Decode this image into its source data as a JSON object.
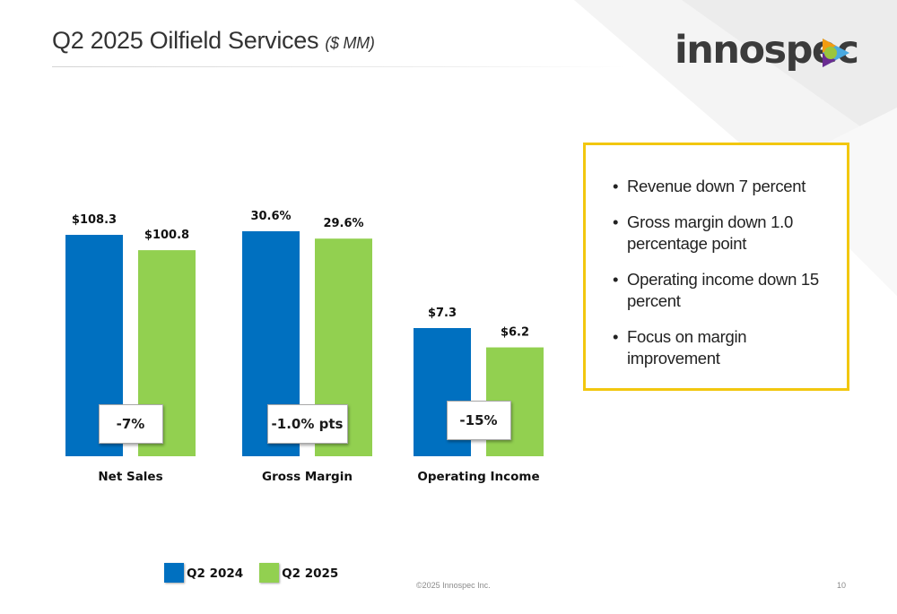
{
  "header": {
    "title": "Q2 2025 Oilfield Services",
    "title_unit": "($ MM)",
    "logo_text": "innospec"
  },
  "chart_data": {
    "type": "bar",
    "groups": [
      {
        "category": "Net Sales",
        "values": [
          108.3,
          100.8
        ],
        "labels": [
          "$108.3",
          "$100.8"
        ],
        "change_label": "-7%"
      },
      {
        "category": "Gross Margin",
        "values": [
          30.6,
          29.6
        ],
        "labels": [
          "30.6%",
          "29.6%"
        ],
        "change_label": "-1.0% pts"
      },
      {
        "category": "Operating Income",
        "values": [
          7.3,
          6.2
        ],
        "labels": [
          "$7.3",
          "$6.2"
        ],
        "change_label": "-15%"
      }
    ],
    "series": [
      {
        "name": "Q2 2024",
        "color": "#0070c0"
      },
      {
        "name": "Q2 2025",
        "color": "#92d050"
      }
    ],
    "legend_position": "bottom"
  },
  "legend": {
    "items": [
      {
        "label": "Q2 2024",
        "color": "#0070c0"
      },
      {
        "label": "Q2 2025",
        "color": "#92d050"
      }
    ]
  },
  "callout": {
    "border_color": "#f2c70f",
    "bullets": [
      "Revenue down 7 percent",
      "Gross margin down 1.0 percentage point",
      "Operating income down 15 percent",
      "Focus on margin improvement"
    ]
  },
  "footer": {
    "copyright": "©2025 Innospec Inc.",
    "page_number": "10"
  }
}
